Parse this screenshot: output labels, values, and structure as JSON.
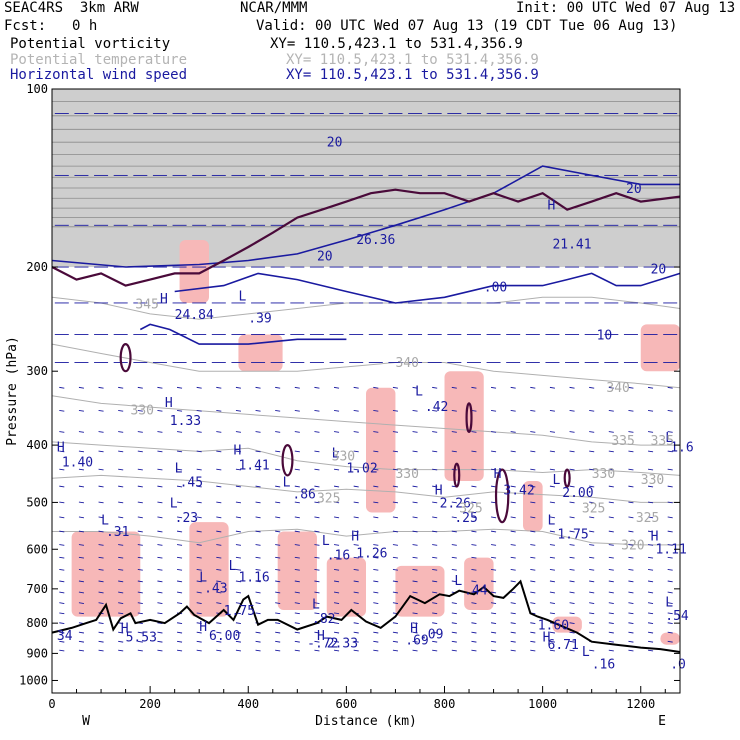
{
  "header": {
    "model": "SEAC4RS  3km ARW",
    "org": "NCAR/MMM",
    "init": "Init: 00 UTC Wed 07 Aug 13",
    "fcst_label": "Fcst:",
    "fcst_value": "0 h",
    "valid": "Valid: 00 UTC Wed 07 Aug 13 (19 CDT Tue 06 Aug 13)",
    "fields": [
      {
        "name": "Potential vorticity",
        "xy": "XY= 110.5,423.1 to 531.4,356.9",
        "color": "#000000"
      },
      {
        "name": "Potential temperature",
        "xy": "XY= 110.5,423.1 to 531.4,356.9",
        "color": "#b4b4b4"
      },
      {
        "name": "Horizontal wind speed",
        "xy": "XY= 110.5,423.1 to 531.4,356.9",
        "color": "#1a1aa0"
      }
    ]
  },
  "chart_data": {
    "type": "line",
    "title": "",
    "xlabel": "Distance (km)",
    "ylabel": "Pressure (hPa)",
    "xlim": [
      0,
      1280
    ],
    "ylim": [
      100,
      1050
    ],
    "y_log_scale": true,
    "x_ticks": [
      0,
      200,
      400,
      600,
      800,
      1000,
      1200
    ],
    "y_ticks": [
      100,
      200,
      300,
      400,
      500,
      600,
      700,
      800,
      900,
      1000
    ],
    "x_end_labels": {
      "left": "W",
      "right": "E"
    },
    "terrain_surface_pressure": {
      "x": [
        0,
        40,
        70,
        90,
        110,
        125,
        140,
        160,
        170,
        200,
        230,
        260,
        275,
        290,
        320,
        350,
        370,
        390,
        400,
        420,
        440,
        460,
        500,
        540,
        560,
        590,
        610,
        640,
        670,
        700,
        730,
        760,
        790,
        810,
        830,
        860,
        880,
        900,
        920,
        940,
        955,
        975,
        990,
        1010,
        1040,
        1070,
        1100,
        1150,
        1200,
        1240,
        1280
      ],
      "y": [
        830,
        815,
        800,
        790,
        745,
        820,
        785,
        770,
        800,
        790,
        800,
        770,
        750,
        775,
        800,
        760,
        790,
        730,
        720,
        805,
        790,
        790,
        820,
        800,
        780,
        790,
        760,
        795,
        815,
        780,
        720,
        740,
        715,
        720,
        705,
        715,
        695,
        720,
        725,
        700,
        680,
        770,
        780,
        790,
        810,
        830,
        860,
        870,
        880,
        885,
        895
      ]
    },
    "potential_temperature_isentropes": [
      {
        "theta": 320,
        "x": [
          0,
          100,
          200,
          300,
          400,
          500,
          600,
          700,
          800,
          900,
          1000,
          1100,
          1200,
          1280
        ],
        "p": [
          560,
          560,
          570,
          585,
          560,
          555,
          570,
          560,
          560,
          555,
          560,
          585,
          590,
          590
        ]
      },
      {
        "theta": 325,
        "x": [
          0,
          100,
          200,
          300,
          400,
          500,
          600,
          700,
          800,
          900,
          1000,
          1100,
          1200,
          1280
        ],
        "p": [
          455,
          450,
          455,
          460,
          470,
          480,
          475,
          480,
          490,
          480,
          485,
          490,
          500,
          500
        ]
      },
      {
        "theta": 330,
        "x": [
          0,
          100,
          200,
          300,
          400,
          500,
          600,
          700,
          800,
          900,
          1000,
          1100,
          1200,
          1280
        ],
        "p": [
          395,
          400,
          405,
          410,
          405,
          425,
          435,
          440,
          440,
          440,
          445,
          440,
          445,
          450
        ]
      },
      {
        "theta": 335,
        "x": [
          0,
          100,
          200,
          300,
          400,
          500,
          600,
          700,
          800,
          900,
          1000,
          1100,
          1200,
          1280
        ],
        "p": [
          330,
          340,
          345,
          350,
          355,
          360,
          365,
          370,
          375,
          380,
          385,
          395,
          400,
          400
        ]
      },
      {
        "theta": 340,
        "x": [
          0,
          100,
          200,
          300,
          400,
          500,
          600,
          700,
          800,
          900,
          1000,
          1100,
          1200,
          1280
        ],
        "p": [
          270,
          280,
          290,
          300,
          300,
          300,
          295,
          290,
          290,
          300,
          305,
          310,
          315,
          320
        ]
      },
      {
        "theta": 345,
        "x": [
          0,
          100,
          200,
          300,
          400,
          500,
          600,
          700,
          800,
          900,
          1000,
          1100,
          1200,
          1280
        ],
        "p": [
          225,
          230,
          240,
          245,
          240,
          235,
          230,
          230,
          230,
          230,
          225,
          225,
          230,
          235
        ]
      }
    ],
    "wind_speed_contours": [
      {
        "label": "20",
        "x": [
          0,
          150,
          300,
          400,
          500,
          600,
          700,
          800,
          900,
          1000,
          1100,
          1200,
          1280
        ],
        "p": [
          195,
          200,
          198,
          195,
          190,
          180,
          170,
          160,
          150,
          135,
          140,
          145,
          145
        ]
      },
      {
        "label": "20",
        "x": [
          250,
          350,
          420,
          500,
          600,
          700,
          800,
          900,
          1000,
          1050,
          1100,
          1150,
          1200,
          1280
        ],
        "p": [
          220,
          215,
          205,
          210,
          220,
          230,
          225,
          215,
          215,
          210,
          205,
          215,
          215,
          205
        ]
      },
      {
        "label": "10",
        "x": [
          180,
          200,
          240,
          300,
          400,
          500,
          600
        ],
        "p": [
          255,
          250,
          255,
          270,
          270,
          265,
          265
        ]
      }
    ],
    "potential_vorticity_contours": [
      {
        "x": [
          0,
          50,
          100,
          150,
          200,
          250,
          300,
          350,
          400,
          450,
          500,
          550,
          600,
          650,
          700,
          750,
          800,
          850,
          900,
          950,
          1000,
          1050,
          1100,
          1150,
          1200,
          1280
        ],
        "p": [
          200,
          210,
          205,
          215,
          210,
          205,
          205,
          195,
          185,
          175,
          165,
          160,
          155,
          150,
          148,
          150,
          150,
          155,
          150,
          155,
          150,
          160,
          155,
          150,
          155,
          152
        ]
      }
    ],
    "pv_closed_contours": [
      {
        "x": [
          140,
          160
        ],
        "p": [
          270,
          300
        ]
      },
      {
        "x": [
          470,
          490
        ],
        "p": [
          400,
          450
        ]
      },
      {
        "x": [
          845,
          855
        ],
        "p": [
          340,
          380
        ]
      },
      {
        "x": [
          820,
          830
        ],
        "p": [
          430,
          470
        ]
      },
      {
        "x": [
          905,
          930
        ],
        "p": [
          440,
          540
        ]
      },
      {
        "x": [
          1045,
          1055
        ],
        "p": [
          440,
          470
        ]
      }
    ],
    "shaded_regions": [
      {
        "x": [
          40,
          180
        ],
        "p": [
          560,
          780
        ]
      },
      {
        "x": [
          280,
          360
        ],
        "p": [
          540,
          780
        ]
      },
      {
        "x": [
          380,
          470
        ],
        "p": [
          260,
          300
        ]
      },
      {
        "x": [
          460,
          540
        ],
        "p": [
          560,
          760
        ]
      },
      {
        "x": [
          560,
          640
        ],
        "p": [
          620,
          780
        ]
      },
      {
        "x": [
          640,
          700
        ],
        "p": [
          320,
          520
        ]
      },
      {
        "x": [
          700,
          800
        ],
        "p": [
          640,
          780
        ]
      },
      {
        "x": [
          800,
          880
        ],
        "p": [
          300,
          460
        ]
      },
      {
        "x": [
          840,
          900
        ],
        "p": [
          620,
          760
        ]
      },
      {
        "x": [
          960,
          1000
        ],
        "p": [
          460,
          560
        ]
      },
      {
        "x": [
          1200,
          1280
        ],
        "p": [
          250,
          300
        ]
      },
      {
        "x": [
          1240,
          1280
        ],
        "p": [
          830,
          870
        ]
      },
      {
        "x": [
          1020,
          1080
        ],
        "p": [
          780,
          830
        ]
      },
      {
        "x": [
          260,
          320
        ],
        "p": [
          180,
          230
        ]
      }
    ],
    "grey_shading_tropopause": {
      "x": [
        0,
        1280
      ],
      "p": [
        100,
        200
      ]
    },
    "annotations": [
      {
        "text": "H",
        "x": 220,
        "p": 230
      },
      {
        "text": "24.84",
        "x": 250,
        "p": 245
      },
      {
        "text": "L",
        "x": 380,
        "p": 228
      },
      {
        "text": ".39",
        "x": 400,
        "p": 248
      },
      {
        "text": "20",
        "x": 560,
        "p": 125
      },
      {
        "text": "26.36",
        "x": 620,
        "p": 183
      },
      {
        "text": "20",
        "x": 540,
        "p": 195
      },
      {
        "text": "H",
        "x": 1010,
        "p": 160
      },
      {
        "text": "21.41",
        "x": 1020,
        "p": 186
      },
      {
        "text": ".00",
        "x": 880,
        "p": 220
      },
      {
        "text": "20",
        "x": 1170,
        "p": 150
      },
      {
        "text": "10",
        "x": 1110,
        "p": 265
      },
      {
        "text": "20",
        "x": 1220,
        "p": 205
      },
      {
        "text": "H",
        "x": 230,
        "p": 345
      },
      {
        "text": "1.33",
        "x": 240,
        "p": 370
      },
      {
        "text": "L",
        "x": 740,
        "p": 330
      },
      {
        "text": ".42",
        "x": 760,
        "p": 350
      },
      {
        "text": "H",
        "x": 10,
        "p": 410
      },
      {
        "text": "1.40",
        "x": 20,
        "p": 435
      },
      {
        "text": "H",
        "x": 370,
        "p": 415
      },
      {
        "text": "1.41",
        "x": 380,
        "p": 440
      },
      {
        "text": "L",
        "x": 570,
        "p": 420
      },
      {
        "text": "1.02",
        "x": 600,
        "p": 445
      },
      {
        "text": "L",
        "x": 250,
        "p": 445
      },
      {
        "text": ".45",
        "x": 260,
        "p": 470
      },
      {
        "text": "L",
        "x": 470,
        "p": 470
      },
      {
        "text": ".86",
        "x": 490,
        "p": 492
      },
      {
        "text": "H",
        "x": 900,
        "p": 455
      },
      {
        "text": "3.42",
        "x": 920,
        "p": 485
      },
      {
        "text": "L",
        "x": 1020,
        "p": 465
      },
      {
        "text": "2.00",
        "x": 1040,
        "p": 490
      },
      {
        "text": "H",
        "x": 780,
        "p": 485
      },
      {
        "text": "2.26",
        "x": 790,
        "p": 510
      },
      {
        "text": "L",
        "x": 240,
        "p": 510
      },
      {
        "text": ".23",
        "x": 250,
        "p": 540
      },
      {
        "text": "L",
        "x": 100,
        "p": 545
      },
      {
        "text": ".31",
        "x": 110,
        "p": 570
      },
      {
        "text": ".25",
        "x": 820,
        "p": 540
      },
      {
        "text": "L",
        "x": 1010,
        "p": 545
      },
      {
        "text": "1.75",
        "x": 1030,
        "p": 575
      },
      {
        "text": "L",
        "x": 550,
        "p": 590
      },
      {
        "text": ".16",
        "x": 560,
        "p": 625
      },
      {
        "text": "H",
        "x": 610,
        "p": 580
      },
      {
        "text": "1.26",
        "x": 620,
        "p": 620
      },
      {
        "text": "H",
        "x": 1220,
        "p": 580
      },
      {
        "text": "1.11",
        "x": 1230,
        "p": 610
      },
      {
        "text": "L",
        "x": 360,
        "p": 650
      },
      {
        "text": "1.16",
        "x": 380,
        "p": 680
      },
      {
        "text": "L",
        "x": 300,
        "p": 680
      },
      {
        "text": ".43",
        "x": 310,
        "p": 710
      },
      {
        "text": "L",
        "x": 820,
        "p": 690
      },
      {
        "text": ".44",
        "x": 840,
        "p": 715
      },
      {
        "text": "L",
        "x": 1250,
        "p": 750
      },
      {
        "text": ".54",
        "x": 1250,
        "p": 790
      },
      {
        "text": ".82",
        "x": 530,
        "p": 800
      },
      {
        "text": "H",
        "x": 140,
        "p": 830
      },
      {
        "text": "5.53",
        "x": 150,
        "p": 860
      },
      {
        "text": "H",
        "x": 300,
        "p": 825
      },
      {
        "text": "6.00",
        "x": 320,
        "p": 855
      },
      {
        "text": "H",
        "x": 540,
        "p": 855
      },
      {
        "text": "2.33",
        "x": 560,
        "p": 880
      },
      {
        "text": "H",
        "x": 730,
        "p": 830
      },
      {
        "text": ".09",
        "x": 750,
        "p": 850
      },
      {
        "text": ".69",
        "x": 720,
        "p": 870
      },
      {
        "text": "H",
        "x": 1000,
        "p": 860
      },
      {
        "text": "6.71",
        "x": 1010,
        "p": 885
      },
      {
        "text": "L",
        "x": 1080,
        "p": 910
      },
      {
        "text": ".16",
        "x": 1100,
        "p": 955
      },
      {
        "text": ".0",
        "x": 1260,
        "p": 955
      },
      {
        "text": "34",
        "x": 10,
        "p": 855
      },
      {
        "text": "1.60",
        "x": 990,
        "p": 820
      },
      {
        "text": "L",
        "x": 530,
        "p": 755
      },
      {
        "text": "L",
        "x": 1250,
        "p": 395
      },
      {
        "text": "1.6",
        "x": 1260,
        "p": 410
      },
      {
        "text": "-.72",
        "x": 520,
        "p": 880
      },
      {
        "text": "1.75",
        "x": 350,
        "p": 775
      }
    ],
    "isentrope_labels": [
      {
        "text": "345",
        "x": 170,
        "p": 235
      },
      {
        "text": "340",
        "x": 700,
        "p": 295
      },
      {
        "text": "340",
        "x": 1130,
        "p": 325
      },
      {
        "text": "330",
        "x": 160,
        "p": 355
      },
      {
        "text": "335",
        "x": 1220,
        "p": 400
      },
      {
        "text": "335",
        "x": 1140,
        "p": 400
      },
      {
        "text": "330",
        "x": 570,
        "p": 425
      },
      {
        "text": "330",
        "x": 700,
        "p": 455
      },
      {
        "text": "330",
        "x": 1100,
        "p": 455
      },
      {
        "text": "330",
        "x": 1200,
        "p": 465
      },
      {
        "text": "325",
        "x": 540,
        "p": 500
      },
      {
        "text": "325",
        "x": 830,
        "p": 520
      },
      {
        "text": "325",
        "x": 1080,
        "p": 520
      },
      {
        "text": "325",
        "x": 1190,
        "p": 540
      },
      {
        "text": "320",
        "x": 1160,
        "p": 600
      }
    ]
  }
}
